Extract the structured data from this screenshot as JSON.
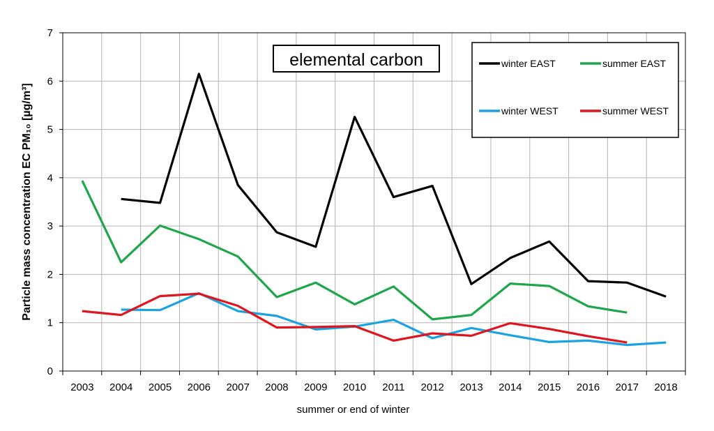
{
  "chart_data": {
    "type": "line",
    "title": "elemental carbon",
    "xlabel": "summer or end of winter",
    "ylabel": "Particle mass concentration EC PM₁₀ [µg/m³]",
    "ylim": [
      0,
      7
    ],
    "yticks": [
      "0",
      "1",
      "2",
      "3",
      "4",
      "5",
      "6",
      "7"
    ],
    "categories": [
      "2003",
      "2004",
      "2005",
      "2006",
      "2007",
      "2008",
      "2009",
      "2010",
      "2011",
      "2012",
      "2013",
      "2014",
      "2015",
      "2016",
      "2017",
      "2018"
    ],
    "grid": true,
    "legend_position": "top-right",
    "series": [
      {
        "name": "winter EAST",
        "color": "#000000",
        "values": [
          null,
          3.56,
          3.48,
          6.15,
          3.85,
          2.87,
          2.57,
          5.26,
          3.6,
          3.83,
          1.8,
          2.34,
          2.68,
          1.86,
          1.83,
          1.54
        ]
      },
      {
        "name": "summer EAST",
        "color": "#1fa64a",
        "values": [
          3.94,
          2.25,
          3.01,
          2.73,
          2.37,
          1.53,
          1.83,
          1.38,
          1.75,
          1.07,
          1.16,
          1.81,
          1.76,
          1.34,
          1.21,
          null
        ]
      },
      {
        "name": "winter WEST",
        "color": "#1aa3e0",
        "values": [
          null,
          1.27,
          1.26,
          1.61,
          1.24,
          1.14,
          0.86,
          0.92,
          1.06,
          0.68,
          0.89,
          0.74,
          0.6,
          0.63,
          0.54,
          0.59
        ]
      },
      {
        "name": "summer WEST",
        "color": "#e0141c",
        "values": [
          1.24,
          1.16,
          1.55,
          1.6,
          1.35,
          0.9,
          0.91,
          0.93,
          0.63,
          0.78,
          0.73,
          0.99,
          0.87,
          0.72,
          0.59,
          null
        ]
      }
    ]
  }
}
